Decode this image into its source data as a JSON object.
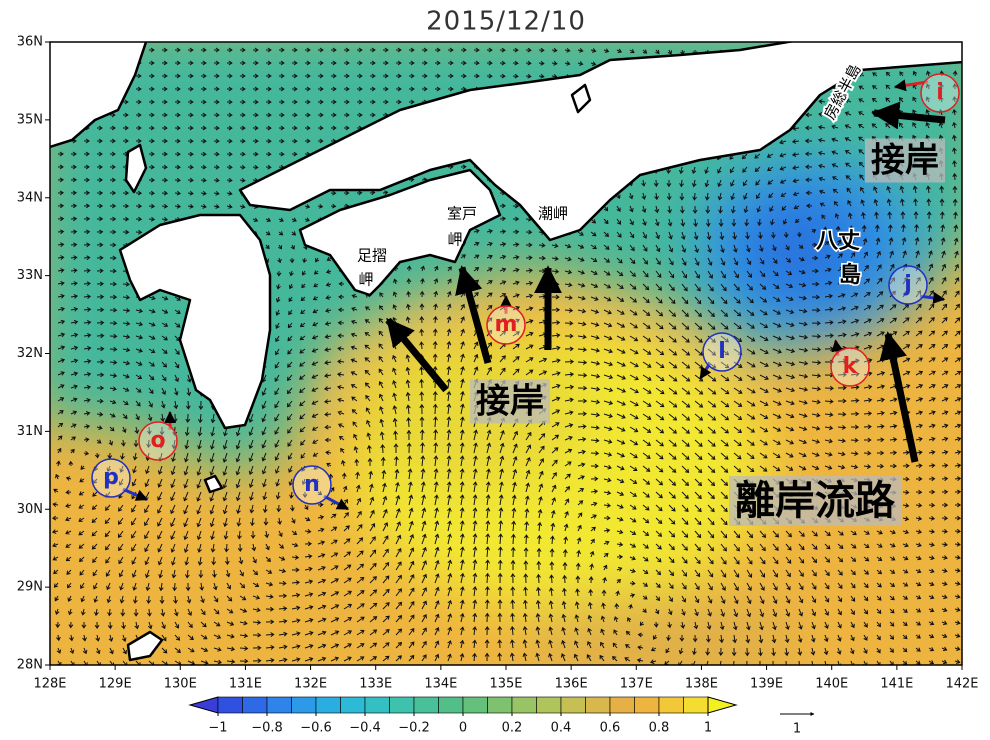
{
  "title": "2015/12/10",
  "map": {
    "xlim": [
      128,
      142
    ],
    "ylim": [
      28,
      36
    ],
    "xticks": [
      {
        "value": 128,
        "label": "128E"
      },
      {
        "value": 129,
        "label": "129E"
      },
      {
        "value": 130,
        "label": "130E"
      },
      {
        "value": 131,
        "label": "131E"
      },
      {
        "value": 132,
        "label": "132E"
      },
      {
        "value": 133,
        "label": "133E"
      },
      {
        "value": 134,
        "label": "134E"
      },
      {
        "value": 135,
        "label": "135E"
      },
      {
        "value": 136,
        "label": "136E"
      },
      {
        "value": 137,
        "label": "137E"
      },
      {
        "value": 138,
        "label": "138E"
      },
      {
        "value": 139,
        "label": "139E"
      },
      {
        "value": 140,
        "label": "140E"
      },
      {
        "value": 141,
        "label": "141E"
      },
      {
        "value": 142,
        "label": "142E"
      }
    ],
    "yticks": [
      {
        "value": 28,
        "label": "28N"
      },
      {
        "value": 29,
        "label": "29N"
      },
      {
        "value": 30,
        "label": "30N"
      },
      {
        "value": 31,
        "label": "31N"
      },
      {
        "value": 32,
        "label": "32N"
      },
      {
        "value": 33,
        "label": "33N"
      },
      {
        "value": 34,
        "label": "34N"
      },
      {
        "value": 35,
        "label": "35N"
      },
      {
        "value": 36,
        "label": "36N"
      }
    ]
  },
  "colorbar": {
    "lim": [
      -1,
      1
    ],
    "ticks": [
      {
        "value": -1,
        "label": "−1"
      },
      {
        "value": -0.8,
        "label": "−0.8"
      },
      {
        "value": -0.6,
        "label": "−0.6"
      },
      {
        "value": -0.4,
        "label": "−0.4"
      },
      {
        "value": -0.2,
        "label": "−0.2"
      },
      0,
      0.2,
      0.4,
      0.6,
      0.8,
      1
    ],
    "colors": [
      "#3c3cd8",
      "#3050e0",
      "#2f6ae6",
      "#2e84e8",
      "#2c9ae8",
      "#2aaee2",
      "#2cbad6",
      "#34c0c2",
      "#3ec2ae",
      "#48c09a",
      "#52be88",
      "#64c07a",
      "#7ec270",
      "#98c466",
      "#b0c45c",
      "#c6c054",
      "#d8b84c",
      "#e6b046",
      "#eeb440",
      "#f2c838",
      "#f4dc30",
      "#f4f020"
    ]
  },
  "vector_key": {
    "value": 1
  },
  "place_labels": [
    {
      "lines": [
        "室戸",
        "岬"
      ]
    },
    {
      "lines": [
        "潮岬"
      ]
    },
    {
      "lines": [
        "足摺",
        "岬"
      ]
    },
    {
      "lines": [
        "八丈",
        "島"
      ]
    },
    {
      "lines": [
        "房総半島"
      ]
    }
  ],
  "callouts": [
    "接岸",
    "接岸",
    "離岸流路"
  ],
  "markers": [
    {
      "label": "i",
      "color": "#e02020"
    },
    {
      "label": "j",
      "color": "#2030c0"
    },
    {
      "label": "k",
      "color": "#e02020"
    },
    {
      "label": "l",
      "color": "#2030c0"
    },
    {
      "label": "m",
      "color": "#e02020"
    },
    {
      "label": "n",
      "color": "#2030c0"
    },
    {
      "label": "o",
      "color": "#e02020"
    },
    {
      "label": "p",
      "color": "#2030c0"
    }
  ]
}
